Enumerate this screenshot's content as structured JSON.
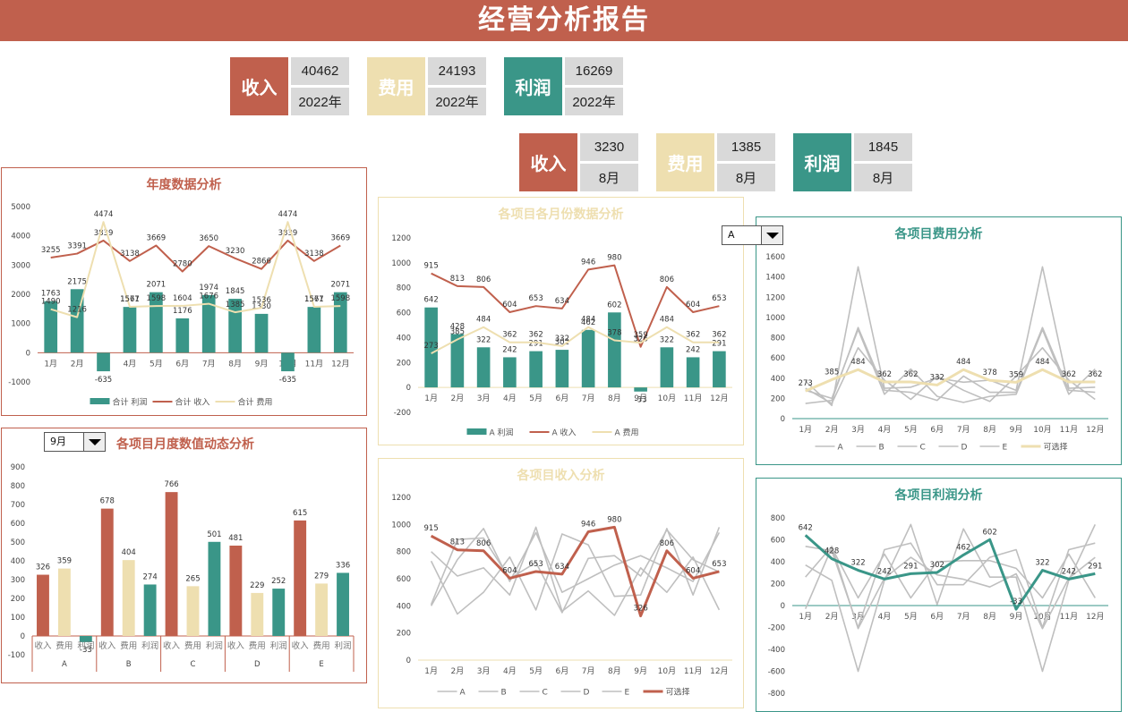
{
  "header": {
    "title": "经营分析报告"
  },
  "colors": {
    "revenue": "#c0604d",
    "expense": "#eedfb0",
    "profit": "#3a9688",
    "grey": "#bfbfbf"
  },
  "yearly_kpis": [
    {
      "label": "收入",
      "value": "40462",
      "period": "2022年"
    },
    {
      "label": "费用",
      "value": "24193",
      "period": "2022年"
    },
    {
      "label": "利润",
      "value": "16269",
      "period": "2022年"
    }
  ],
  "monthly_kpis": [
    {
      "label": "收入",
      "value": "3230",
      "period": "8月"
    },
    {
      "label": "费用",
      "value": "1385",
      "period": "8月"
    },
    {
      "label": "利润",
      "value": "1845",
      "period": "8月"
    }
  ],
  "dropdowns": {
    "month_select": "9月",
    "item_select": "A"
  },
  "chart_data": [
    {
      "id": "annual",
      "type": "bar",
      "title": "年度数据分析",
      "categories": [
        "1月",
        "2月",
        "3月",
        "4月",
        "5月",
        "6月",
        "7月",
        "8月",
        "9月",
        "10月",
        "11月",
        "12月"
      ],
      "ylim": [
        -1000,
        5000
      ],
      "yticks": [
        -1000,
        0,
        1000,
        2000,
        3000,
        4000,
        5000
      ],
      "series": [
        {
          "name": "合计 利润",
          "kind": "bar",
          "values": [
            1763,
            2175,
            -635,
            1567,
            2071,
            1176,
            1974,
            1845,
            1330,
            -635,
            1567,
            2071
          ]
        },
        {
          "name": "合计 收入",
          "kind": "line",
          "values": [
            3255,
            3391,
            3839,
            3138,
            3669,
            2780,
            3650,
            3230,
            2866,
            3839,
            3138,
            3669
          ]
        },
        {
          "name": "合计 费用",
          "kind": "line",
          "values": [
            1490,
            1216,
            4474,
            1571,
            1598,
            1604,
            1676,
            1385,
            1536,
            4474,
            1571,
            1598
          ]
        }
      ],
      "legend_position": "bottom"
    },
    {
      "id": "item_monthly",
      "type": "bar",
      "title": "各项目各月份数据分析",
      "categories": [
        "1月",
        "2月",
        "3月",
        "4月",
        "5月",
        "6月",
        "7月",
        "8月",
        "9月",
        "10月",
        "11月",
        "12月"
      ],
      "ylim": [
        -200,
        1200
      ],
      "yticks": [
        -200,
        0,
        200,
        400,
        600,
        800,
        1000,
        1200
      ],
      "series": [
        {
          "name": "A 利润",
          "kind": "bar",
          "values": [
            642,
            428,
            322,
            242,
            291,
            302,
            462,
            602,
            -33,
            322,
            242,
            291
          ]
        },
        {
          "name": "A 收入",
          "kind": "line",
          "values": [
            915,
            813,
            806,
            604,
            653,
            634,
            946,
            980,
            326,
            806,
            604,
            653
          ]
        },
        {
          "name": "A 费用",
          "kind": "line",
          "values": [
            273,
            385,
            484,
            362,
            362,
            332,
            484,
            378,
            359,
            484,
            362,
            362
          ]
        }
      ],
      "legend_position": "bottom"
    },
    {
      "id": "expense_by_item",
      "type": "line",
      "title": "各项目费用分析",
      "categories": [
        "1月",
        "2月",
        "3月",
        "4月",
        "5月",
        "6月",
        "7月",
        "8月",
        "9月",
        "10月",
        "11月",
        "12月"
      ],
      "ylim": [
        0,
        1600
      ],
      "yticks": [
        0,
        200,
        400,
        600,
        800,
        1000,
        1200,
        1400,
        1600
      ],
      "series": [
        {
          "name": "A",
          "values": [
            273,
            385,
            484,
            362,
            362,
            332,
            484,
            378,
            359,
            484,
            362,
            362
          ]
        },
        {
          "name": "B",
          "values": [
            370,
            130,
            1500,
            300,
            310,
            400,
            360,
            380,
            280,
            1500,
            300,
            310
          ]
        },
        {
          "name": "C",
          "values": [
            150,
            180,
            900,
            280,
            260,
            180,
            420,
            260,
            260,
            900,
            280,
            260
          ]
        },
        {
          "name": "D",
          "values": [
            280,
            200,
            880,
            240,
            490,
            220,
            160,
            220,
            240,
            880,
            240,
            490
          ]
        },
        {
          "name": "E",
          "values": [
            300,
            150,
            700,
            380,
            190,
            420,
            280,
            170,
            420,
            700,
            380,
            190
          ]
        },
        {
          "name": "可选择",
          "highlight": true,
          "values": [
            273,
            385,
            484,
            362,
            362,
            332,
            484,
            378,
            359,
            484,
            362,
            362
          ]
        }
      ],
      "legend_position": "bottom"
    },
    {
      "id": "monthly_dynamic",
      "type": "bar",
      "title": "各项目月度数值动态分析",
      "groups": [
        "A",
        "B",
        "C",
        "D",
        "E"
      ],
      "subcategories": [
        "收入",
        "费用",
        "利润"
      ],
      "ylim": [
        -100,
        900
      ],
      "yticks": [
        -100,
        0,
        100,
        200,
        300,
        400,
        500,
        600,
        700,
        800,
        900
      ],
      "values": [
        [
          326,
          359,
          -33
        ],
        [
          678,
          404,
          274
        ],
        [
          766,
          265,
          501
        ],
        [
          481,
          229,
          252
        ],
        [
          615,
          279,
          336
        ]
      ]
    },
    {
      "id": "revenue_by_item",
      "type": "line",
      "title": "各项目收入分析",
      "categories": [
        "1月",
        "2月",
        "3月",
        "4月",
        "5月",
        "6月",
        "7月",
        "8月",
        "9月",
        "10月",
        "11月",
        "12月"
      ],
      "ylim": [
        0,
        1200
      ],
      "yticks": [
        0,
        200,
        400,
        600,
        800,
        1000,
        1200
      ],
      "series": [
        {
          "name": "A",
          "values": [
            915,
            813,
            806,
            604,
            653,
            634,
            946,
            980,
            326,
            806,
            604,
            653
          ]
        },
        {
          "name": "B",
          "values": [
            800,
            620,
            680,
            480,
            980,
            360,
            510,
            330,
            680,
            500,
            760,
            370
          ]
        },
        {
          "name": "C",
          "values": [
            730,
            340,
            500,
            760,
            370,
            930,
            850,
            470,
            480,
            970,
            480,
            980
          ]
        },
        {
          "name": "D",
          "values": [
            400,
            740,
            970,
            580,
            940,
            500,
            600,
            700,
            770,
            680,
            580,
            940
          ]
        },
        {
          "name": "E",
          "values": [
            410,
            890,
            900,
            600,
            720,
            350,
            750,
            770,
            620,
            960,
            740,
            650
          ]
        },
        {
          "name": "可选择",
          "highlight": true,
          "values": [
            915,
            813,
            806,
            604,
            653,
            634,
            946,
            980,
            326,
            806,
            604,
            653
          ]
        }
      ],
      "legend_position": "bottom"
    },
    {
      "id": "profit_by_item",
      "type": "line",
      "title": "各项目利润分析",
      "categories": [
        "1月",
        "2月",
        "3月",
        "4月",
        "5月",
        "6月",
        "7月",
        "8月",
        "9月",
        "10月",
        "11月",
        "12月"
      ],
      "ylim": [
        -800,
        800
      ],
      "yticks": [
        -800,
        -600,
        -400,
        -200,
        0,
        200,
        400,
        600,
        800
      ],
      "series": [
        {
          "name": "A",
          "values": [
            642,
            428,
            322,
            242,
            291,
            302,
            462,
            602,
            -33,
            322,
            242,
            291
          ]
        },
        {
          "name": "B",
          "values": [
            540,
            500,
            -200,
            510,
            570,
            190,
            190,
            440,
            510,
            -200,
            510,
            570
          ]
        },
        {
          "name": "C",
          "values": [
            370,
            230,
            -600,
            230,
            740,
            10,
            700,
            260,
            260,
            -600,
            230,
            740
          ]
        },
        {
          "name": "D",
          "values": [
            -30,
            530,
            70,
            470,
            70,
            400,
            410,
            410,
            340,
            70,
            470,
            70
          ]
        },
        {
          "name": "E",
          "values": [
            260,
            540,
            -210,
            250,
            440,
            280,
            240,
            170,
            290,
            -210,
            250,
            440
          ]
        },
        {
          "name": "可选择",
          "highlight": true,
          "values": [
            642,
            428,
            322,
            242,
            291,
            302,
            462,
            602,
            -33,
            322,
            242,
            291
          ]
        }
      ],
      "legend_position": "bottom"
    }
  ]
}
